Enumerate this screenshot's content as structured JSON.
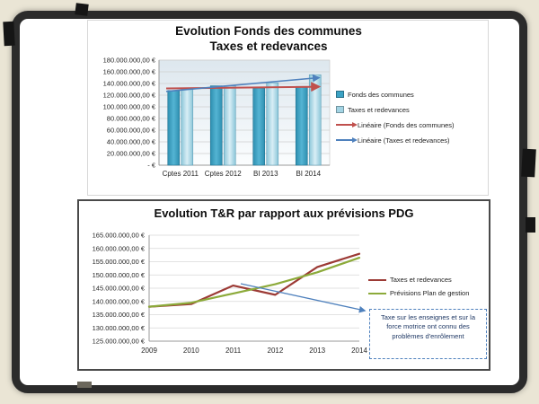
{
  "page": {
    "background_color": "#eae5d5",
    "frame_color": "#2b2b2b"
  },
  "chart_data": [
    {
      "type": "bar",
      "title_lines": [
        "Evolution Fonds des communes",
        "Taxes et redevances"
      ],
      "categories": [
        "Cptes 2011",
        "Cptes 2012",
        "BI 2013",
        "BI 2014"
      ],
      "series": [
        {
          "name": "Fonds des communes",
          "color": "#3ba2c4",
          "values": [
            128000000,
            136000000,
            132000000,
            135000000
          ]
        },
        {
          "name": "Taxes et redevances",
          "color": "#a3d4e4",
          "values": [
            130000000,
            136000000,
            141000000,
            155000000
          ]
        }
      ],
      "trendlines": [
        {
          "name": "Linéaire (Fonds des communes)",
          "color": "#c0504d",
          "start": 131500000,
          "end": 134500000
        },
        {
          "name": "Linéaire (Taxes et redevances)",
          "color": "#4f81bd",
          "start": 126500000,
          "end": 150000000
        }
      ],
      "ylim": [
        0,
        180000000
      ],
      "ytick_step": 20000000,
      "ytick_labels": [
        "180.000.000,00 €",
        "160.000.000,00 €",
        "140.000.000,00 €",
        "120.000.000,00 €",
        "100.000.000,00 €",
        "80.000.000,00 €",
        "60.000.000,00 €",
        "40.000.000,00 €",
        "20.000.000,00 €",
        "- €"
      ],
      "grid": true,
      "legend_position": "right"
    },
    {
      "type": "line",
      "title": "Evolution T&R par rapport aux prévisions PDG",
      "x": [
        "2009",
        "2010",
        "2011",
        "2012",
        "2013",
        "2014"
      ],
      "series": [
        {
          "name": "Taxes et redevances",
          "color": "#9c3a35",
          "values": [
            138000000,
            139000000,
            146000000,
            142500000,
            153000000,
            158000000
          ]
        },
        {
          "name": "Prévisions Plan de gestion",
          "color": "#8caa3a",
          "values": [
            138000000,
            139500000,
            143000000,
            146500000,
            151000000,
            156500000
          ]
        }
      ],
      "ylim": [
        125000000,
        165000000
      ],
      "ytick_step": 5000000,
      "ytick_labels": [
        "165.000.000,00 €",
        "160.000.000,00 €",
        "155.000.000,00 €",
        "150.000.000,00 €",
        "145.000.000,00 €",
        "140.000.000,00 €",
        "135.000.000,00 €",
        "130.000.000,00 €",
        "125.000.000,00 €"
      ],
      "grid": true,
      "legend_position": "right",
      "annotation": {
        "text": "Taxe sur les enseignes et sur la force motrice ont connu des problèmes d'enrôlement",
        "border_color": "#4f81bd",
        "arrow_color": "#4f81bd"
      }
    }
  ]
}
